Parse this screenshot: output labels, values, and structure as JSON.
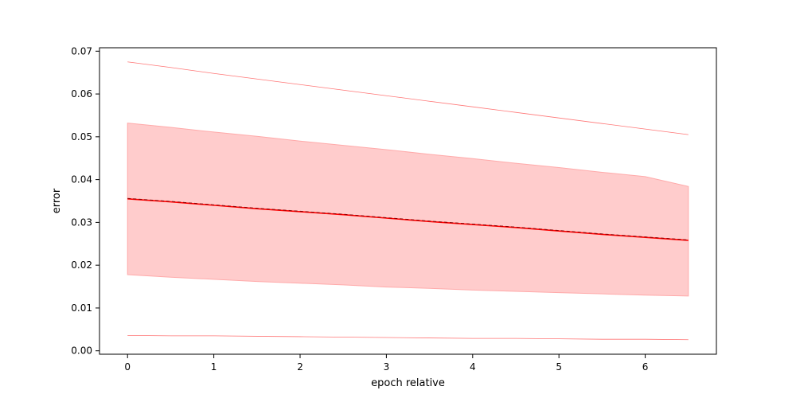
{
  "chart_data": {
    "type": "line",
    "title": "",
    "xlabel": "epoch relative",
    "ylabel": "error",
    "xlim": [
      -0.325,
      6.825
    ],
    "ylim": [
      -0.0008,
      0.0708
    ],
    "xticks": [
      0,
      1,
      2,
      3,
      4,
      5,
      6
    ],
    "yticks": [
      0.0,
      0.01,
      0.02,
      0.03,
      0.04,
      0.05,
      0.06,
      0.07
    ],
    "ytick_labels": [
      "0.00",
      "0.01",
      "0.02",
      "0.03",
      "0.04",
      "0.05",
      "0.06",
      "0.07"
    ],
    "grid": false,
    "legend": "none",
    "colors": {
      "line": "#ff0000",
      "band_fill": "#ffcccc",
      "band_edge": "#ffaaaa",
      "extreme_line": "#ff7777",
      "axis": "#000000"
    },
    "x": [
      0,
      0.5,
      1,
      1.5,
      2,
      2.5,
      3,
      3.5,
      4,
      4.5,
      5,
      5.5,
      6,
      6.5
    ],
    "series": [
      {
        "role": "max",
        "style": "thin",
        "values": [
          0.0675,
          0.0662,
          0.0648,
          0.0635,
          0.0622,
          0.0609,
          0.0596,
          0.0583,
          0.057,
          0.0557,
          0.0544,
          0.0531,
          0.0518,
          0.0505
        ]
      },
      {
        "role": "upper",
        "style": "band-edge",
        "values": [
          0.0532,
          0.0522,
          0.0511,
          0.0501,
          0.049,
          0.048,
          0.047,
          0.0459,
          0.0449,
          0.0438,
          0.0428,
          0.0417,
          0.0407,
          0.0384
        ]
      },
      {
        "role": "mean",
        "style": "solid",
        "values": [
          0.0355,
          0.0348,
          0.034,
          0.0332,
          0.0325,
          0.0318,
          0.031,
          0.0302,
          0.0295,
          0.0288,
          0.028,
          0.0272,
          0.0265,
          0.0258
        ]
      },
      {
        "role": "median",
        "style": "dashed",
        "values": [
          0.0356,
          0.0349,
          0.0341,
          0.0333,
          0.0326,
          0.0319,
          0.0311,
          0.0303,
          0.0296,
          0.0289,
          0.0281,
          0.0273,
          0.0266,
          0.0259
        ]
      },
      {
        "role": "lower",
        "style": "band-edge",
        "values": [
          0.0178,
          0.0172,
          0.0167,
          0.0162,
          0.0158,
          0.0154,
          0.0149,
          0.0146,
          0.0142,
          0.0139,
          0.0136,
          0.0133,
          0.013,
          0.0128
        ]
      },
      {
        "role": "min",
        "style": "thin",
        "values": [
          0.0036,
          0.0035,
          0.0035,
          0.0034,
          0.0033,
          0.0032,
          0.0031,
          0.003,
          0.0029,
          0.0029,
          0.0028,
          0.0027,
          0.0027,
          0.0026
        ]
      }
    ]
  }
}
